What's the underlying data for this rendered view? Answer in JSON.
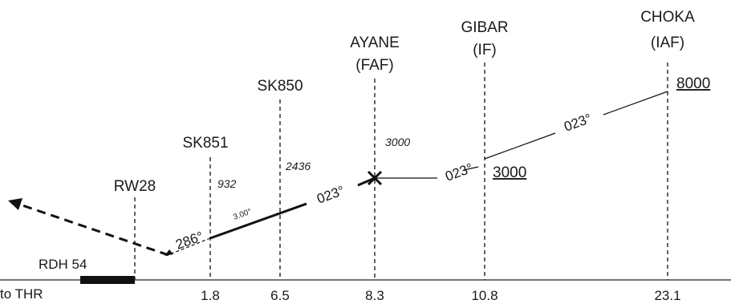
{
  "fixes": [
    {
      "name": "CHOKA",
      "role": "(IAF)",
      "dist": "23.1",
      "alt": "8000"
    },
    {
      "name": "GIBAR",
      "role": "(IF)",
      "dist": "10.8",
      "alt": "3000"
    },
    {
      "name": "AYANE",
      "role": "(FAF)",
      "dist": "8.3",
      "alt": "3000"
    },
    {
      "name": "SK850",
      "dist": "6.5",
      "alt": "2436"
    },
    {
      "name": "SK851",
      "dist": "1.8",
      "alt": "932"
    },
    {
      "name": "RW28"
    }
  ],
  "courses": {
    "choka_gibar": "023°",
    "gibar_ayane": "023°",
    "final": "023°",
    "missed": "286°"
  },
  "glidepath": "3.00°",
  "rdh": "RDH 54",
  "dist_prefix": "to THR"
}
